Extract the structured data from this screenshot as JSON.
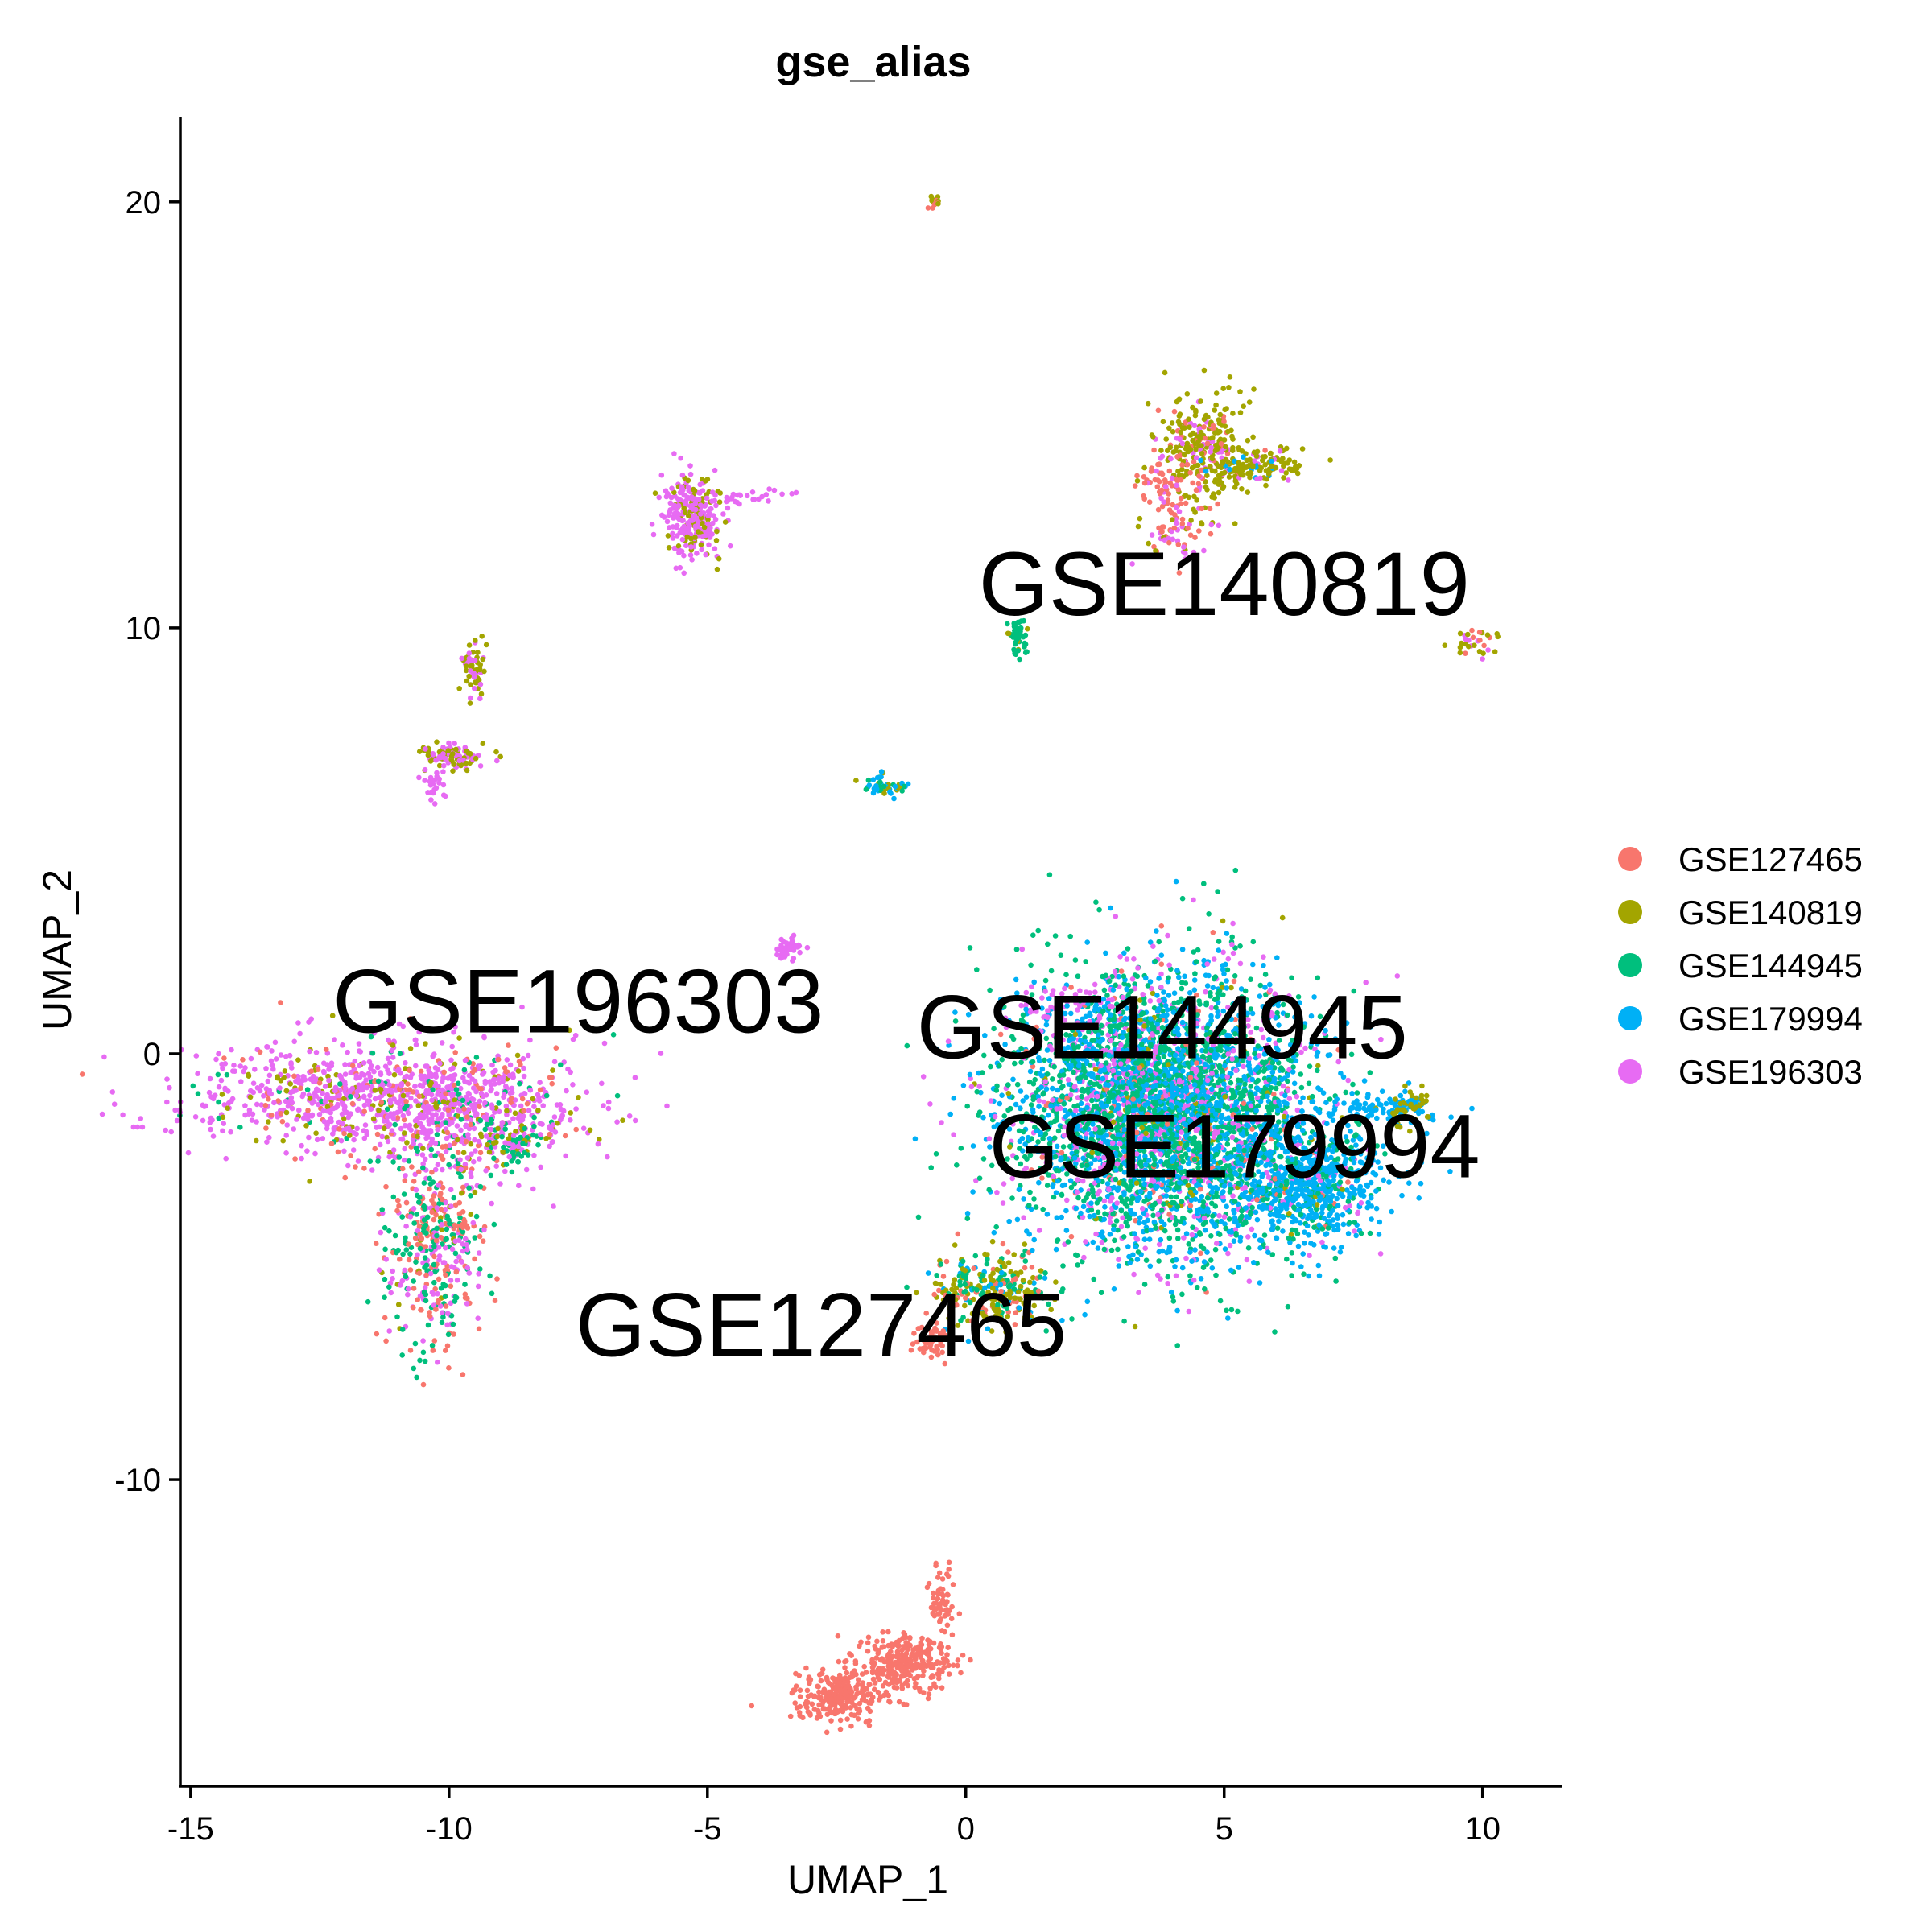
{
  "chart_data": {
    "type": "scatter",
    "title": "gse_alias",
    "xlabel": "UMAP_1",
    "ylabel": "UMAP_2",
    "xlim": [
      -15.2,
      11.5
    ],
    "ylim": [
      -17.2,
      22
    ],
    "xticks": [
      -15,
      -10,
      -5,
      0,
      5,
      10
    ],
    "yticks": [
      -10,
      0,
      10,
      20
    ],
    "xtick_labels": [
      "-15",
      "-10",
      "-5",
      "0",
      "5",
      "10"
    ],
    "ytick_labels": [
      "-10",
      "0",
      "10",
      "20"
    ],
    "grid": false,
    "legend_position": "right",
    "series": [
      {
        "name": "GSE127465",
        "color": "#F8766D"
      },
      {
        "name": "GSE140819",
        "color": "#A3A500"
      },
      {
        "name": "GSE144945",
        "color": "#00BF7D"
      },
      {
        "name": "GSE179994",
        "color": "#00B0F6"
      },
      {
        "name": "GSE196303",
        "color": "#E76BF3"
      }
    ],
    "annotations": [
      {
        "text": "GSE140819",
        "x": 5.0,
        "y": 10.3
      },
      {
        "text": "GSE196303",
        "x": -7.5,
        "y": 0.5
      },
      {
        "text": "GSE144945",
        "x": 3.8,
        "y": -0.1
      },
      {
        "text": "GSE179994",
        "x": 5.2,
        "y": -2.9
      },
      {
        "text": "GSE127465",
        "x": -2.8,
        "y": -7.1
      }
    ],
    "clusters": [
      {
        "cx": -11.5,
        "cy": -1.0,
        "sx": 2.0,
        "sy": 0.7,
        "n": 900,
        "weights": [
          0.1,
          0.1,
          0.06,
          0,
          0.74
        ]
      },
      {
        "cx": -9.5,
        "cy": -1.5,
        "sx": 1.2,
        "sy": 0.9,
        "n": 400,
        "weights": [
          0.15,
          0.12,
          0.1,
          0,
          0.63
        ]
      },
      {
        "cx": -10.3,
        "cy": -4.5,
        "sx": 0.55,
        "sy": 1.3,
        "n": 450,
        "weights": [
          0.35,
          0.05,
          0.3,
          0,
          0.3
        ]
      },
      {
        "cx": -8.8,
        "cy": -2.2,
        "sx": 0.3,
        "sy": 0.3,
        "n": 60,
        "weights": [
          0,
          0.3,
          0.5,
          0,
          0.2
        ]
      },
      {
        "cx": 3.8,
        "cy": -1.3,
        "sx": 1.6,
        "sy": 1.8,
        "n": 4200,
        "weights": [
          0.03,
          0.02,
          0.42,
          0.35,
          0.18
        ]
      },
      {
        "cx": 6.6,
        "cy": -3.1,
        "sx": 0.8,
        "sy": 0.8,
        "n": 700,
        "weights": [
          0.02,
          0.02,
          0.2,
          0.7,
          0.06
        ]
      },
      {
        "cx": 7.8,
        "cy": -1.3,
        "sx": 0.8,
        "sy": 0.15,
        "n": 80,
        "weights": [
          0,
          0.05,
          0,
          0.95,
          0
        ]
      },
      {
        "cx": 8.6,
        "cy": -1.2,
        "sx": 0.2,
        "sy": 0.3,
        "n": 60,
        "weights": [
          0,
          0.6,
          0,
          0.4,
          0
        ]
      },
      {
        "cx": 1.8,
        "cy": 1.2,
        "sx": 0.6,
        "sy": 0.3,
        "n": 50,
        "weights": [
          0,
          0,
          0,
          0.1,
          0.9
        ]
      },
      {
        "cx": 0.5,
        "cy": -5.5,
        "sx": 0.6,
        "sy": 0.5,
        "n": 280,
        "weights": [
          0.2,
          0.4,
          0.3,
          0.1,
          0
        ]
      },
      {
        "cx": -0.7,
        "cy": -6.7,
        "sx": 0.2,
        "sy": 0.25,
        "n": 50,
        "weights": [
          1,
          0,
          0,
          0,
          0
        ]
      },
      {
        "cx": -1.2,
        "cy": -14.3,
        "sx": 0.5,
        "sy": 0.35,
        "n": 300,
        "weights": [
          1,
          0,
          0,
          0,
          0
        ]
      },
      {
        "cx": -2.5,
        "cy": -15.1,
        "sx": 0.5,
        "sy": 0.3,
        "n": 250,
        "weights": [
          1,
          0,
          0,
          0,
          0
        ]
      },
      {
        "cx": -0.45,
        "cy": -12.8,
        "sx": 0.15,
        "sy": 0.5,
        "n": 60,
        "weights": [
          1,
          0,
          0,
          0,
          0
        ]
      },
      {
        "cx": 4.6,
        "cy": 14.2,
        "sx": 0.5,
        "sy": 0.7,
        "n": 320,
        "weights": [
          0.15,
          0.7,
          0,
          0,
          0.15
        ]
      },
      {
        "cx": 5.6,
        "cy": 13.8,
        "sx": 0.5,
        "sy": 0.2,
        "n": 120,
        "weights": [
          0,
          0.8,
          0,
          0.1,
          0.1
        ]
      },
      {
        "cx": 3.8,
        "cy": 13.3,
        "sx": 0.3,
        "sy": 0.3,
        "n": 50,
        "weights": [
          0.9,
          0,
          0,
          0,
          0.1
        ]
      },
      {
        "cx": 4.0,
        "cy": 12.2,
        "sx": 0.35,
        "sy": 0.35,
        "n": 60,
        "weights": [
          0.5,
          0.2,
          0,
          0,
          0.3
        ]
      },
      {
        "cx": 1.0,
        "cy": 9.8,
        "sx": 0.1,
        "sy": 0.3,
        "n": 60,
        "weights": [
          0,
          0.1,
          0.9,
          0,
          0
        ]
      },
      {
        "cx": 9.9,
        "cy": 9.7,
        "sx": 0.3,
        "sy": 0.2,
        "n": 30,
        "weights": [
          0.3,
          0.5,
          0,
          0,
          0.2
        ]
      },
      {
        "cx": -5.3,
        "cy": 12.6,
        "sx": 0.35,
        "sy": 0.55,
        "n": 280,
        "weights": [
          0,
          0.2,
          0,
          0,
          0.8
        ]
      },
      {
        "cx": -4.2,
        "cy": 13.1,
        "sx": 0.4,
        "sy": 0.1,
        "n": 25,
        "weights": [
          0,
          0,
          0,
          0,
          1
        ]
      },
      {
        "cx": -9.5,
        "cy": 9.0,
        "sx": 0.12,
        "sy": 0.4,
        "n": 60,
        "weights": [
          0,
          0.7,
          0,
          0,
          0.3
        ]
      },
      {
        "cx": -10.0,
        "cy": 7.0,
        "sx": 0.4,
        "sy": 0.15,
        "n": 100,
        "weights": [
          0,
          0.6,
          0,
          0,
          0.4
        ]
      },
      {
        "cx": -10.3,
        "cy": 6.4,
        "sx": 0.12,
        "sy": 0.25,
        "n": 25,
        "weights": [
          0,
          0,
          0,
          0,
          1
        ]
      },
      {
        "cx": -1.6,
        "cy": 6.3,
        "sx": 0.2,
        "sy": 0.15,
        "n": 50,
        "weights": [
          0,
          0.3,
          0.3,
          0.4,
          0
        ]
      },
      {
        "cx": -3.4,
        "cy": 2.5,
        "sx": 0.15,
        "sy": 0.15,
        "n": 45,
        "weights": [
          0,
          0,
          0,
          0,
          1
        ]
      },
      {
        "cx": -0.6,
        "cy": 20.0,
        "sx": 0.08,
        "sy": 0.08,
        "n": 15,
        "weights": [
          0.3,
          0.7,
          0,
          0,
          0
        ]
      }
    ]
  }
}
